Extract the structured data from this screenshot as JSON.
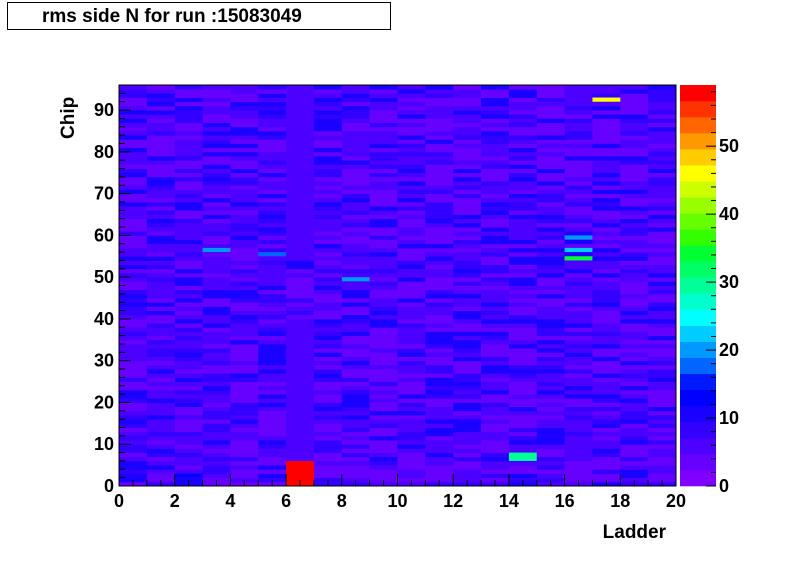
{
  "chart_data": {
    "type": "heatmap",
    "title": "rms side N for run :15083049",
    "xlabel": "Ladder",
    "ylabel": "Chip",
    "xlim": [
      0,
      20
    ],
    "ylim": [
      0,
      96
    ],
    "zlim": [
      0,
      59
    ],
    "x_ticks": [
      "0",
      "2",
      "4",
      "6",
      "8",
      "10",
      "12",
      "14",
      "16",
      "18",
      "20"
    ],
    "y_ticks": [
      "0",
      "10",
      "20",
      "30",
      "40",
      "50",
      "60",
      "70",
      "80",
      "90"
    ],
    "z_ticks": [
      "0",
      "10",
      "20",
      "30",
      "40",
      "50"
    ],
    "palette": [
      "#7f00ff",
      "#6600ff",
      "#4c00ff",
      "#3300ff",
      "#1a00ff",
      "#0000ff",
      "#0019ff",
      "#0066ff",
      "#0099ff",
      "#00ccff",
      "#00ffff",
      "#00ffcc",
      "#00ff99",
      "#00ff66",
      "#00ff33",
      "#33ff00",
      "#66ff00",
      "#99ff00",
      "#ccff00",
      "#ffff00",
      "#ffcc00",
      "#ff9900",
      "#ff6600",
      "#ff3300",
      "#ff0000"
    ],
    "background_level": 3,
    "hot_cells": [
      {
        "ladder": 6,
        "chip_from": 0,
        "chip_to": 6,
        "value": 59
      },
      {
        "ladder": 17,
        "chip_from": 92,
        "chip_to": 93,
        "value": 47
      },
      {
        "ladder": 14,
        "chip_from": 6,
        "chip_to": 8,
        "value": 30
      },
      {
        "ladder": 16,
        "chip_from": 54,
        "chip_to": 55,
        "value": 34
      },
      {
        "ladder": 16,
        "chip_from": 56,
        "chip_to": 57,
        "value": 22
      },
      {
        "ladder": 16,
        "chip_from": 59,
        "chip_to": 60,
        "value": 19
      },
      {
        "ladder": 3,
        "chip_from": 56,
        "chip_to": 57,
        "value": 21
      },
      {
        "ladder": 5,
        "chip_from": 55,
        "chip_to": 56,
        "value": 18
      },
      {
        "ladder": 8,
        "chip_from": 49,
        "chip_to": 50,
        "value": 19
      },
      {
        "ladder": 2,
        "chip_from": 2,
        "chip_to": 3,
        "value": 14
      },
      {
        "ladder": 6,
        "chip_from": 54,
        "chip_to": 96,
        "value": 7
      },
      {
        "ladder": 6,
        "chip_from": 6,
        "chip_to": 40,
        "value": 6
      }
    ]
  }
}
